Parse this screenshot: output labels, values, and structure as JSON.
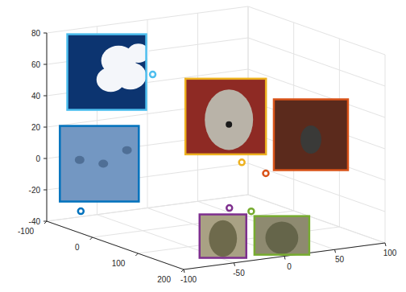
{
  "chart_data": {
    "type": "scatter3d",
    "x": [
      -62,
      -54,
      34,
      27,
      20,
      48
    ],
    "y": [
      -12,
      -87,
      33,
      60,
      27,
      36
    ],
    "z": [
      50,
      -30,
      0,
      -10,
      -30,
      -30
    ],
    "colors": [
      "#4dbeee",
      "#0072bd",
      "#edb120",
      "#d95319",
      "#7e2f8e",
      "#77ac30"
    ],
    "marker": "circle",
    "xlim": [
      -100,
      200
    ],
    "ylim": [
      -100,
      100
    ],
    "zlim": [
      -40,
      80
    ],
    "xticks": [
      -100,
      0,
      100,
      200
    ],
    "yticks": [
      -100,
      -50,
      0,
      50,
      100
    ],
    "zticks": [
      -40,
      -20,
      0,
      20,
      40,
      60,
      80
    ],
    "grid": true
  }
}
